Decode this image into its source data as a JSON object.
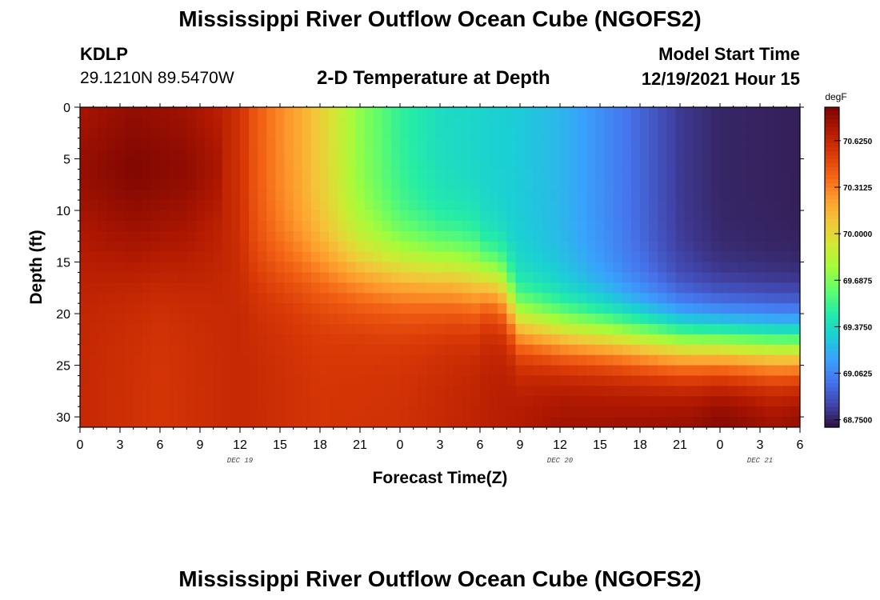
{
  "header": {
    "title": "Mississippi River Outflow Ocean Cube (NGOFS2)",
    "station": "KDLP",
    "coords": "29.1210N  89.5470W",
    "subtitle": "2-D Temperature at Depth",
    "model_start_label": "Model Start Time",
    "model_start_value": "12/19/2021 Hour 15"
  },
  "footer": {
    "title_repeat": "Mississippi River Outflow Ocean Cube (NGOFS2)"
  },
  "chart_data": {
    "type": "heatmap",
    "xlabel": "Forecast Time(Z)",
    "ylabel": "Depth (ft)",
    "x_tick_labels": [
      "0",
      "3",
      "6",
      "9",
      "12",
      "15",
      "18",
      "21",
      "0",
      "3",
      "6",
      "9",
      "12",
      "15",
      "18",
      "21",
      "0",
      "3",
      "6"
    ],
    "x_range_hours": [
      0,
      54
    ],
    "date_labels": [
      {
        "text": "DEC 19",
        "hour": 12
      },
      {
        "text": "DEC 20",
        "hour": 36
      },
      {
        "text": "DEC 21",
        "hour": 51
      }
    ],
    "y_ticks": [
      0,
      5,
      10,
      15,
      20,
      25,
      30
    ],
    "ylim": [
      0,
      31
    ],
    "y_inverted": true,
    "colorbar": {
      "units": "degF",
      "tick_labels": [
        "70.6250",
        "70.3125",
        "70.0000",
        "69.6875",
        "69.3750",
        "69.0625",
        "68.7500"
      ],
      "range": [
        68.7,
        70.85
      ],
      "colors": [
        "#30123b",
        "#4145ab",
        "#4675ed",
        "#39a2fc",
        "#1bcfd4",
        "#24eca6",
        "#61fc6c",
        "#a4fc3b",
        "#d1e834",
        "#f3c63a",
        "#fe9b2d",
        "#f36315",
        "#d93806",
        "#b11901",
        "#7a0402"
      ]
    },
    "temperature_model": {
      "description": "Temperature (degF) sampled over forecast hour (0-54) and depth (0-31 ft)",
      "surface_profile": [
        [
          0,
          70.72
        ],
        [
          4,
          70.78
        ],
        [
          8,
          70.74
        ],
        [
          10.5,
          70.66
        ],
        [
          12,
          70.58
        ],
        [
          13,
          70.45
        ],
        [
          14.5,
          70.32
        ],
        [
          16.5,
          70.18
        ],
        [
          18.5,
          70.0
        ],
        [
          21,
          69.72
        ],
        [
          24,
          69.5
        ],
        [
          27,
          69.38
        ],
        [
          30,
          69.34
        ],
        [
          33,
          69.3
        ],
        [
          36,
          69.23
        ],
        [
          39,
          69.1
        ],
        [
          42,
          68.96
        ],
        [
          45,
          68.82
        ],
        [
          48,
          68.76
        ],
        [
          54,
          68.74
        ]
      ],
      "thermocline_depth_profile": [
        [
          0,
          15.5
        ],
        [
          20,
          15.8
        ],
        [
          28,
          16.2
        ],
        [
          31.5,
          17.2
        ],
        [
          33,
          20.8
        ],
        [
          36,
          21.8
        ],
        [
          40,
          22.2
        ],
        [
          45,
          22.8
        ],
        [
          54,
          23.2
        ]
      ],
      "deep_profile": [
        [
          0,
          70.62
        ],
        [
          6,
          70.56
        ],
        [
          12,
          70.62
        ],
        [
          18,
          70.56
        ],
        [
          24,
          70.58
        ],
        [
          28,
          70.63
        ],
        [
          32,
          70.68
        ],
        [
          36,
          70.75
        ],
        [
          42,
          70.77
        ],
        [
          46,
          70.8
        ],
        [
          48,
          70.85
        ],
        [
          50,
          70.82
        ],
        [
          52,
          70.78
        ],
        [
          54,
          70.82
        ]
      ]
    }
  }
}
